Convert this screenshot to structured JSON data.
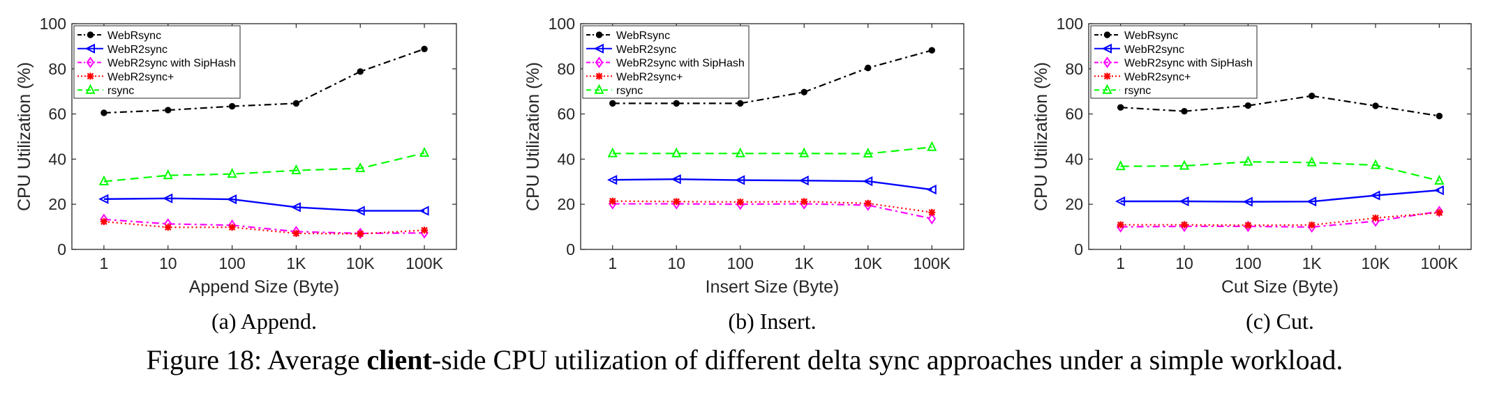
{
  "figure_caption": {
    "prefix": "Figure 18: Average ",
    "bold": "client",
    "suffix": "-side CPU utilization of different delta sync approaches under a simple workload."
  },
  "series_styles": [
    {
      "name": "WebRsync",
      "color": "#000000",
      "dash": "dashdot",
      "marker": "dot"
    },
    {
      "name": "WebR2sync",
      "color": "#0000ff",
      "dash": "solid",
      "marker": "triangle-left"
    },
    {
      "name": "WebR2sync with SipHash",
      "color": "#ff00ff",
      "dash": "dashdot",
      "marker": "diamond"
    },
    {
      "name": "WebR2sync+",
      "color": "#ff0000",
      "dash": "dotted",
      "marker": "asterisk"
    },
    {
      "name": "rsync",
      "color": "#00ff00",
      "dash": "dashed",
      "marker": "triangle-up"
    }
  ],
  "chart_data": [
    {
      "type": "line",
      "caption": "(a) Append.",
      "xlabel": "Append Size (Byte)",
      "ylabel": "CPU Utilization (%)",
      "categories": [
        "1",
        "10",
        "100",
        "1K",
        "10K",
        "100K"
      ],
      "ylim": [
        0,
        100
      ],
      "yticks": [
        0,
        20,
        40,
        60,
        80,
        100
      ],
      "grid": false,
      "legend_position": "top-left",
      "series": [
        {
          "name": "WebRsync",
          "values": [
            60.5,
            61.7,
            63.4,
            64.7,
            78.8,
            88.8
          ]
        },
        {
          "name": "WebR2sync",
          "values": [
            22.3,
            22.6,
            22.2,
            18.7,
            17.1,
            17.1
          ]
        },
        {
          "name": "WebR2sync with SipHash",
          "values": [
            13.3,
            11.3,
            10.7,
            7.9,
            7.1,
            7.3
          ]
        },
        {
          "name": "WebR2sync+",
          "values": [
            12.3,
            9.8,
            9.8,
            7.1,
            6.9,
            8.5
          ]
        },
        {
          "name": "rsync",
          "values": [
            30.1,
            32.8,
            33.4,
            35.0,
            35.9,
            42.7
          ]
        }
      ]
    },
    {
      "type": "line",
      "caption": "(b) Insert.",
      "xlabel": "Insert Size (Byte)",
      "ylabel": "CPU Utilization (%)",
      "categories": [
        "1",
        "10",
        "100",
        "1K",
        "10K",
        "100K"
      ],
      "ylim": [
        0,
        100
      ],
      "yticks": [
        0,
        20,
        40,
        60,
        80,
        100
      ],
      "grid": false,
      "legend_position": "top-left",
      "series": [
        {
          "name": "WebRsync",
          "values": [
            64.7,
            64.7,
            64.7,
            69.7,
            80.4,
            88.2
          ]
        },
        {
          "name": "WebR2sync",
          "values": [
            30.8,
            31.1,
            30.7,
            30.5,
            30.2,
            26.5
          ]
        },
        {
          "name": "WebR2sync with SipHash",
          "values": [
            20.2,
            20.2,
            20.0,
            20.2,
            19.6,
            13.6
          ]
        },
        {
          "name": "WebR2sync+",
          "values": [
            21.4,
            21.2,
            21.0,
            21.2,
            20.4,
            16.4
          ]
        },
        {
          "name": "rsync",
          "values": [
            42.5,
            42.5,
            42.5,
            42.5,
            42.4,
            45.3
          ]
        }
      ]
    },
    {
      "type": "line",
      "caption": "(c) Cut.",
      "xlabel": "Cut Size (Byte)",
      "ylabel": "CPU Utilization (%)",
      "categories": [
        "1",
        "10",
        "100",
        "1K",
        "10K",
        "100K"
      ],
      "ylim": [
        0,
        100
      ],
      "yticks": [
        0,
        20,
        40,
        60,
        80,
        100
      ],
      "grid": false,
      "legend_position": "top-left",
      "series": [
        {
          "name": "WebRsync",
          "values": [
            62.9,
            61.2,
            63.7,
            68.0,
            63.6,
            59.1
          ]
        },
        {
          "name": "WebR2sync",
          "values": [
            21.3,
            21.3,
            21.1,
            21.2,
            23.9,
            26.2
          ]
        },
        {
          "name": "WebR2sync with SipHash",
          "values": [
            10.0,
            10.2,
            10.2,
            9.9,
            12.5,
            16.8
          ]
        },
        {
          "name": "WebR2sync+",
          "values": [
            10.9,
            10.9,
            10.7,
            10.8,
            13.9,
            16.3
          ]
        },
        {
          "name": "rsync",
          "values": [
            36.8,
            37.0,
            38.8,
            38.5,
            37.3,
            30.4
          ]
        }
      ]
    }
  ]
}
